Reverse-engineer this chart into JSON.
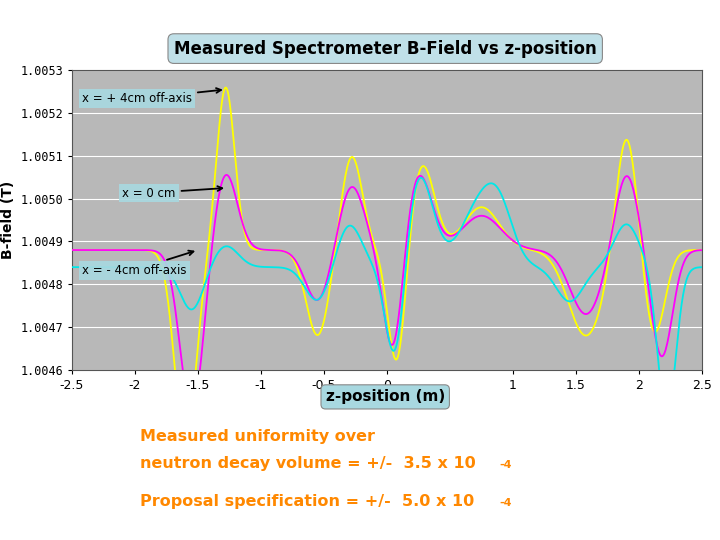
{
  "title": "Measured Spectrometer B-Field vs z-position",
  "xlabel": "z-position (m)",
  "ylabel": "B-field (T)",
  "plot_bg": "#b8b8b8",
  "fig_bg": "#f0f0f0",
  "ylim": [
    1.0046,
    1.0053
  ],
  "xlim": [
    -2.5,
    2.5
  ],
  "yticks": [
    1.0046,
    1.0047,
    1.0048,
    1.0049,
    1.005,
    1.0051,
    1.0052,
    1.0053
  ],
  "xticks": [
    -2.5,
    -2.0,
    -1.5,
    -1.0,
    -0.5,
    0,
    1.0,
    1.5,
    2.0,
    2.5
  ],
  "color_yellow": "#ffff00",
  "color_magenta": "#ff00ff",
  "color_cyan": "#00e8e8",
  "annotation_box_color": "#a8d8e0",
  "orange_text_color": "#ff8800",
  "ann1_text": "x = + 4cm off-axis",
  "ann2_text": "x = 0 cm",
  "ann3_text": "x = - 4cm off-axis",
  "text1_line1": "Measured uniformity over",
  "text1_line2": "neutron decay volume = +/-  3.5 x 10",
  "text1_exp": "-4",
  "text2": "Proposal specification = +/-  5.0 x 10",
  "text2_exp": "-4"
}
